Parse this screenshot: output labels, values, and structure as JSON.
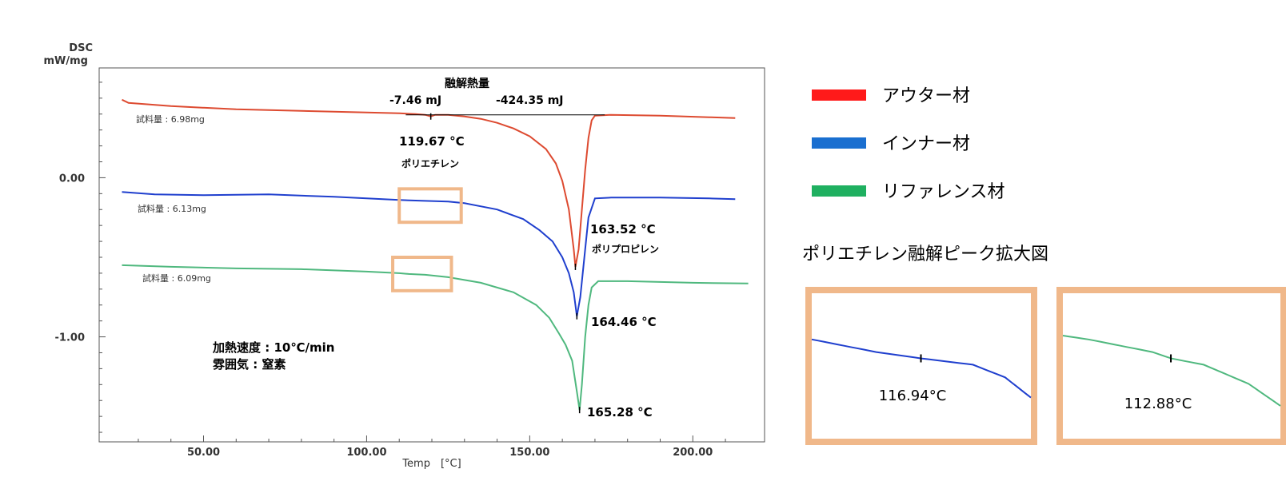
{
  "chart_data": {
    "type": "line",
    "title": "",
    "xlabel": "Temp　[°C]",
    "ylabel": "DSC\nmW/mg",
    "ylabel_line1": "DSC",
    "ylabel_line2": "mW/mg",
    "xlim": [
      18,
      222
    ],
    "ylim": [
      -1.66,
      0.69
    ],
    "x_ticks": [
      50,
      100,
      150,
      200
    ],
    "x_tick_labels": [
      "50.00",
      "100.00",
      "150.00",
      "200.00"
    ],
    "y_ticks": [
      0.0,
      -1.0
    ],
    "y_tick_labels": [
      "0.00",
      "-1.00"
    ],
    "grid": false,
    "legend_position": "right",
    "series": [
      {
        "name": "アウター材",
        "color": "#ff1a1a",
        "line_color": "#dd4a30",
        "sample_label": "試料量 : 6.98mg",
        "points": [
          [
            25,
            0.49
          ],
          [
            27,
            0.47
          ],
          [
            40,
            0.45
          ],
          [
            60,
            0.43
          ],
          [
            80,
            0.42
          ],
          [
            100,
            0.41
          ],
          [
            110,
            0.405
          ],
          [
            115,
            0.4
          ],
          [
            118,
            0.395
          ],
          [
            119.67,
            0.385
          ],
          [
            121,
            0.395
          ],
          [
            125,
            0.395
          ],
          [
            130,
            0.385
          ],
          [
            135,
            0.37
          ],
          [
            140,
            0.345
          ],
          [
            145,
            0.31
          ],
          [
            150,
            0.26
          ],
          [
            155,
            0.18
          ],
          [
            158,
            0.09
          ],
          [
            160,
            -0.02
          ],
          [
            162,
            -0.2
          ],
          [
            163.5,
            -0.45
          ],
          [
            164,
            -0.56
          ],
          [
            165,
            -0.45
          ],
          [
            166,
            -0.2
          ],
          [
            167,
            0.05
          ],
          [
            168,
            0.25
          ],
          [
            169,
            0.36
          ],
          [
            170,
            0.39
          ],
          [
            175,
            0.395
          ],
          [
            190,
            0.39
          ],
          [
            205,
            0.38
          ],
          [
            213,
            0.375
          ]
        ]
      },
      {
        "name": "インナー材",
        "color": "#1a6fd0",
        "line_color": "#1f3fce",
        "sample_label": "試料量 : 6.13mg",
        "points": [
          [
            25,
            -0.09
          ],
          [
            35,
            -0.105
          ],
          [
            50,
            -0.11
          ],
          [
            70,
            -0.105
          ],
          [
            90,
            -0.12
          ],
          [
            110,
            -0.14
          ],
          [
            116.94,
            -0.145
          ],
          [
            125,
            -0.15
          ],
          [
            130,
            -0.16
          ],
          [
            140,
            -0.2
          ],
          [
            148,
            -0.26
          ],
          [
            153,
            -0.33
          ],
          [
            157,
            -0.4
          ],
          [
            160,
            -0.5
          ],
          [
            162,
            -0.6
          ],
          [
            163.5,
            -0.72
          ],
          [
            164.46,
            -0.87
          ],
          [
            165.5,
            -0.75
          ],
          [
            167,
            -0.45
          ],
          [
            168,
            -0.25
          ],
          [
            170,
            -0.13
          ],
          [
            175,
            -0.125
          ],
          [
            190,
            -0.125
          ],
          [
            205,
            -0.13
          ],
          [
            213,
            -0.135
          ]
        ]
      },
      {
        "name": "リファレンス材",
        "color": "#1fb060",
        "line_color": "#4fb87e",
        "sample_label": "試料量 : 6.09mg",
        "points": [
          [
            25,
            -0.55
          ],
          [
            40,
            -0.56
          ],
          [
            60,
            -0.57
          ],
          [
            80,
            -0.575
          ],
          [
            100,
            -0.59
          ],
          [
            110,
            -0.6
          ],
          [
            112.88,
            -0.605
          ],
          [
            118,
            -0.61
          ],
          [
            125,
            -0.625
          ],
          [
            135,
            -0.66
          ],
          [
            145,
            -0.72
          ],
          [
            152,
            -0.8
          ],
          [
            156,
            -0.88
          ],
          [
            159,
            -0.98
          ],
          [
            161,
            -1.05
          ],
          [
            163,
            -1.15
          ],
          [
            164.5,
            -1.35
          ],
          [
            165.28,
            -1.46
          ],
          [
            166,
            -1.3
          ],
          [
            167,
            -1.0
          ],
          [
            168,
            -0.8
          ],
          [
            169,
            -0.69
          ],
          [
            171,
            -0.65
          ],
          [
            180,
            -0.65
          ],
          [
            200,
            -0.66
          ],
          [
            217,
            -0.665
          ]
        ]
      }
    ],
    "annotations": {
      "heat_title": "融解熱量",
      "heat_pe": "-7.46  mJ",
      "heat_pp": "-424.35   mJ",
      "peak_outer_pe": "119.67  °C",
      "pe_label": "ポリエチレン",
      "peak_outer_pp": "163.52  °C",
      "pp_label": "ポリプロピレン",
      "peak_inner": "164.46  °C",
      "peak_ref": "165.28  °C",
      "heating_rate": "加熱速度 : 10℃/min",
      "atmosphere": "雰囲気 : 窒素"
    },
    "zoom_title": "ポリエチレン融解ピーク拡大図",
    "zoom_insets": [
      {
        "series": "インナー材",
        "peak": "116.94°C",
        "range": [
          100,
          134
        ],
        "color": "#1f3fce"
      },
      {
        "series": "リファレンス材",
        "peak": "112.88°C",
        "range": [
          96,
          130
        ],
        "color": "#4fb87e"
      }
    ],
    "highlight_color": "#f0b88a"
  }
}
